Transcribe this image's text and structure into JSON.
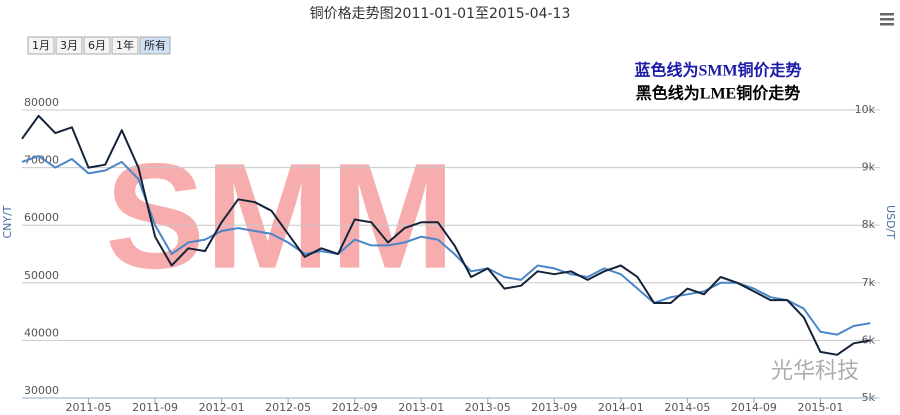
{
  "chart_data": {
    "type": "line",
    "title": "铜价格走势图2011-01-01至2015-04-13",
    "range_buttons": [
      "1月",
      "3月",
      "6月",
      "1年",
      "所有"
    ],
    "annotations": [
      "蓝色线为SMM铜价走势",
      "黑色线为LME铜价走势"
    ],
    "watermark": "SMM",
    "credit": "光华科技",
    "ylabel": "CNY/T",
    "y2label": "USD/T",
    "xlim": [
      "2011-01-01",
      "2015-04-13"
    ],
    "xticks": [
      "2011-05",
      "2011-09",
      "2012-01",
      "2012-05",
      "2012-09",
      "2013-01",
      "2013-05",
      "2013-09",
      "2014-01",
      "2014-05",
      "2014-09",
      "2015-01"
    ],
    "ylim": [
      30000,
      82000
    ],
    "yticks": [
      30000,
      40000,
      50000,
      60000,
      70000,
      80000
    ],
    "y2lim": [
      5000,
      10200
    ],
    "y2ticks": [
      {
        "value": 5000,
        "label": "5k"
      },
      {
        "value": 6000,
        "label": "6k"
      },
      {
        "value": 7000,
        "label": "7k"
      },
      {
        "value": 8000,
        "label": "8k"
      },
      {
        "value": 9000,
        "label": "9k"
      },
      {
        "value": 10000,
        "label": "10k"
      }
    ],
    "grid": true,
    "x": [
      "2011-01",
      "2011-02",
      "2011-03",
      "2011-04",
      "2011-05",
      "2011-06",
      "2011-07",
      "2011-08",
      "2011-09",
      "2011-10",
      "2011-11",
      "2011-12",
      "2012-01",
      "2012-02",
      "2012-03",
      "2012-04",
      "2012-05",
      "2012-06",
      "2012-07",
      "2012-08",
      "2012-09",
      "2012-10",
      "2012-11",
      "2012-12",
      "2013-01",
      "2013-02",
      "2013-03",
      "2013-04",
      "2013-05",
      "2013-06",
      "2013-07",
      "2013-08",
      "2013-09",
      "2013-10",
      "2013-11",
      "2013-12",
      "2014-01",
      "2014-02",
      "2014-03",
      "2014-04",
      "2014-05",
      "2014-06",
      "2014-07",
      "2014-08",
      "2014-09",
      "2014-10",
      "2014-11",
      "2014-12",
      "2015-01",
      "2015-02",
      "2015-03",
      "2015-04"
    ],
    "series": [
      {
        "color": "#4a86c8",
        "axis": "y",
        "values": [
          71000,
          72000,
          70000,
          71500,
          69000,
          69500,
          71000,
          68000,
          60000,
          55000,
          57000,
          57500,
          59000,
          59500,
          59000,
          58500,
          57000,
          55000,
          55500,
          55000,
          57500,
          56500,
          56500,
          57000,
          58000,
          57500,
          55000,
          52000,
          52500,
          51000,
          50500,
          53000,
          52500,
          51500,
          51000,
          52500,
          51500,
          49000,
          46500,
          47500,
          48000,
          48500,
          50000,
          50000,
          49000,
          47500,
          47000,
          45500,
          41500,
          41000,
          42500,
          43000
        ]
      },
      {
        "color": "#15233a",
        "axis": "y2",
        "values": [
          9500,
          9900,
          9600,
          9700,
          9000,
          9050,
          9650,
          9000,
          7800,
          7300,
          7600,
          7550,
          8050,
          8450,
          8400,
          8250,
          7850,
          7450,
          7600,
          7500,
          8100,
          8050,
          7700,
          7950,
          8050,
          8050,
          7650,
          7100,
          7250,
          6900,
          6950,
          7200,
          7150,
          7200,
          7050,
          7200,
          7300,
          7100,
          6650,
          6650,
          6900,
          6800,
          7100,
          7000,
          6850,
          6700,
          6700,
          6400,
          5800,
          5750,
          5950,
          6000
        ]
      }
    ]
  }
}
